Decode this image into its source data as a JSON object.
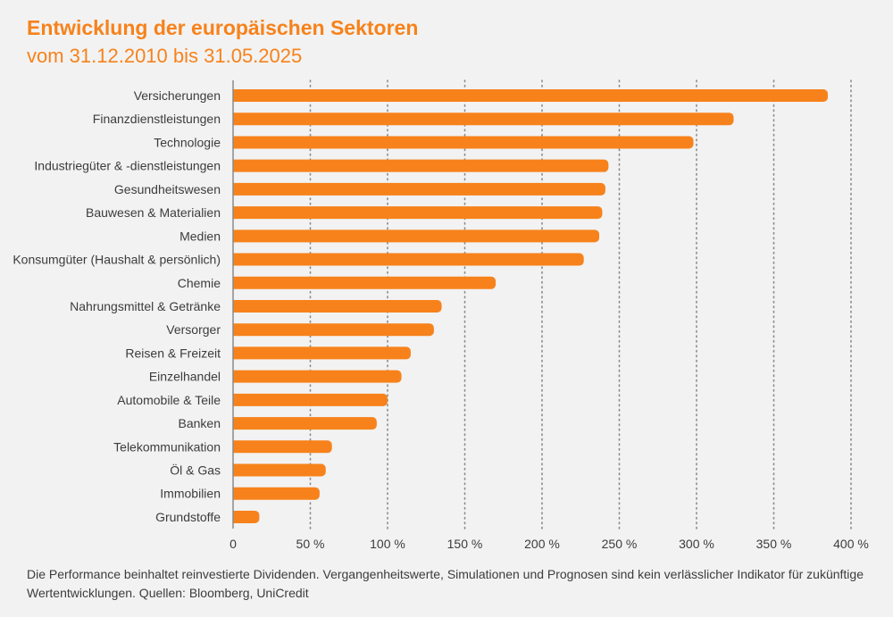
{
  "header": {
    "title": "Entwicklung der europäischen Sektoren",
    "subtitle": "vom 31.12.2010 bis 31.05.2025"
  },
  "footnote": "Die Performance beinhaltet reinvestierte Dividenden. Vergangenheitswerte, Simulationen und Prognosen sind kein verlässlicher Indikator für zukünftige Wertentwicklungen. Quellen: Bloomberg, UniCredit",
  "colors": {
    "bar": "#f7821b",
    "text": "#3c3c3c",
    "grid": "#8a8a8a",
    "background": "#f2f2f2"
  },
  "chart_data": {
    "type": "bar",
    "orientation": "horizontal",
    "title": "Entwicklung der europäischen Sektoren",
    "subtitle": "vom 31.12.2010 bis 31.05.2025",
    "xlabel": "",
    "ylabel": "",
    "xlim": [
      0,
      400
    ],
    "xticks": [
      0,
      50,
      100,
      150,
      200,
      250,
      300,
      350,
      400
    ],
    "xtick_labels": [
      "0",
      "50 %",
      "100 %",
      "150 %",
      "200 %",
      "250 %",
      "300 %",
      "350 %",
      "400 %"
    ],
    "grid": "vertical dotted",
    "categories": [
      "Versicherungen",
      "Finanzdienstleistungen",
      "Technologie",
      "Industriegüter & -dienstleistungen",
      "Gesundheitswesen",
      "Bauwesen & Materialien",
      "Medien",
      "Konsumgüter (Haushalt & persönlich)",
      "Chemie",
      "Nahrungsmittel & Getränke",
      "Versorger",
      "Reisen & Freizeit",
      "Einzelhandel",
      "Automobile & Teile",
      "Banken",
      "Telekommunikation",
      "Öl & Gas",
      "Immobilien",
      "Grundstoffe"
    ],
    "values": [
      385,
      324,
      298,
      243,
      241,
      239,
      237,
      227,
      170,
      135,
      130,
      115,
      109,
      100,
      93,
      64,
      60,
      56,
      17
    ]
  }
}
